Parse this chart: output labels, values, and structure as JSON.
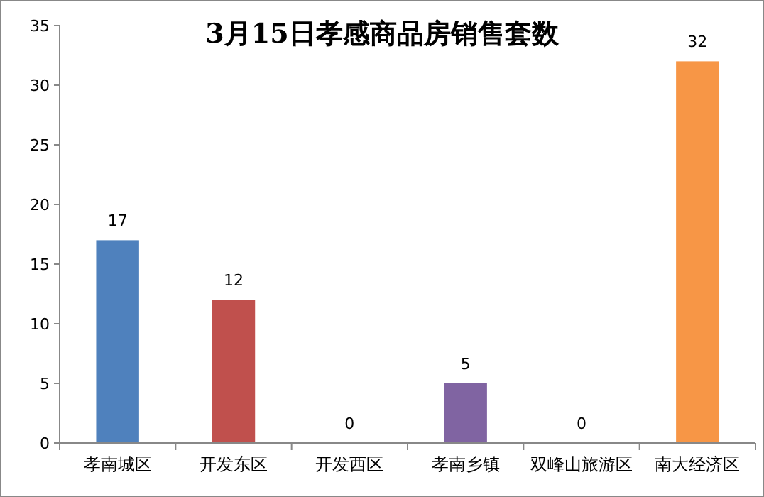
{
  "chart_data": {
    "type": "bar",
    "title": "3月15日孝感商品房销售套数",
    "categories": [
      "孝南城区",
      "开发东区",
      "开发西区",
      "孝南乡镇",
      "双峰山旅游区",
      "南大经济区"
    ],
    "values": [
      17,
      12,
      0,
      5,
      0,
      32
    ],
    "colors": [
      "#4f81bd",
      "#c0504d",
      "#9bbb59",
      "#8064a2",
      "#4bacc6",
      "#f79646"
    ],
    "ylim": [
      0,
      35
    ],
    "yticks": [
      0,
      5,
      10,
      15,
      20,
      25,
      30,
      35
    ],
    "grid": false,
    "data_labels": true
  }
}
